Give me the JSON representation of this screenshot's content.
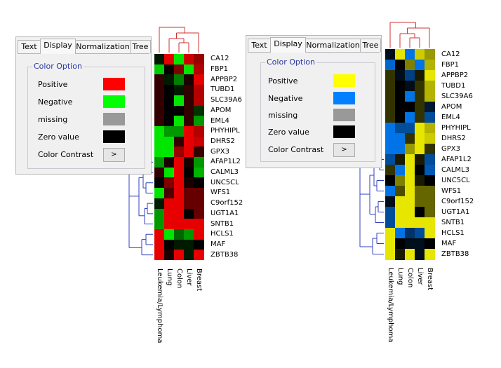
{
  "left_dialog": {
    "tabs": [
      {
        "label": "Text",
        "active": false
      },
      {
        "label": "Display",
        "active": true
      },
      {
        "label": "Normalization",
        "active": false
      },
      {
        "label": "Tree",
        "active": false
      }
    ],
    "group_title": "Color Option",
    "options": [
      {
        "label": "Positive",
        "color": "#ff0000"
      },
      {
        "label": "Negative",
        "color": "#00ff00"
      },
      {
        "label": "missing",
        "color": "#999999"
      },
      {
        "label": "Zero value",
        "color": "#000000"
      }
    ],
    "contrast_label": "Color Contrast",
    "contrast_button": ">"
  },
  "right_dialog": {
    "tabs": [
      {
        "label": "Text",
        "active": false
      },
      {
        "label": "Display",
        "active": true
      },
      {
        "label": "Normalization",
        "active": false
      },
      {
        "label": "Tree",
        "active": false
      }
    ],
    "group_title": "Color Option",
    "options": [
      {
        "label": "Positive",
        "color": "#ffff00"
      },
      {
        "label": "Negative",
        "color": "#0080ff"
      },
      {
        "label": "missing",
        "color": "#999999"
      },
      {
        "label": "Zero value",
        "color": "#000000"
      }
    ],
    "contrast_label": "Color Contrast",
    "contrast_button": ">"
  },
  "heatmap": {
    "genes": [
      "CA12",
      "FBP1",
      "APPBP2",
      "TUBD1",
      "SLC39A6",
      "APOM",
      "EML4",
      "PHYHIPL",
      "DHRS2",
      "GPX3",
      "AFAP1L2",
      "CALML3",
      "UNC5CL",
      "WFS1",
      "C9orf152",
      "UGT1A1",
      "SNTB1",
      "HCLS1",
      "MAF",
      "ZBTB38"
    ],
    "columns": [
      "Leukemia/Lymphoma",
      "Lung",
      "Colon",
      "Liver",
      "Breast"
    ],
    "values": [
      [
        -0.1,
        0.9,
        -0.9,
        0.8,
        0.6
      ],
      [
        -0.8,
        0.0,
        0.5,
        -0.9,
        0.7
      ],
      [
        0.2,
        -0.1,
        -0.5,
        0.1,
        0.9
      ],
      [
        0.2,
        0.0,
        -0.1,
        0.2,
        0.7
      ],
      [
        0.2,
        0.0,
        -0.9,
        0.2,
        0.7
      ],
      [
        0.2,
        0.0,
        0.0,
        0.2,
        -0.2
      ],
      [
        0.2,
        0.0,
        -0.9,
        0.2,
        -0.6
      ],
      [
        -0.9,
        -0.6,
        -0.6,
        0.9,
        0.7
      ],
      [
        -0.9,
        -0.9,
        0.2,
        0.9,
        0.8
      ],
      [
        -0.9,
        -0.9,
        0.6,
        0.9,
        0.2
      ],
      [
        -0.6,
        0.1,
        0.9,
        0.1,
        -0.6
      ],
      [
        0.2,
        -0.9,
        0.9,
        0.0,
        -0.7
      ],
      [
        0.0,
        0.5,
        0.9,
        0.1,
        0.0
      ],
      [
        -0.9,
        0.3,
        0.9,
        0.4,
        0.4
      ],
      [
        -0.1,
        0.9,
        0.9,
        0.4,
        0.4
      ],
      [
        -0.6,
        0.9,
        0.9,
        0.0,
        0.4
      ],
      [
        -0.6,
        0.9,
        0.9,
        0.9,
        0.9
      ],
      [
        0.9,
        -0.9,
        -0.4,
        -0.6,
        0.9
      ],
      [
        0.9,
        0.0,
        -0.1,
        -0.1,
        0.0
      ],
      [
        0.9,
        0.1,
        0.9,
        -0.1,
        0.9
      ]
    ],
    "scheme_left": {
      "positive": "#ff0000",
      "negative": "#00ff00",
      "zero": "#000000"
    },
    "scheme_right": {
      "positive": "#ffff00",
      "negative": "#0080ff",
      "zero": "#000000"
    },
    "tree_top_color": "#d03030",
    "tree_left_color": "#3040c0"
  }
}
